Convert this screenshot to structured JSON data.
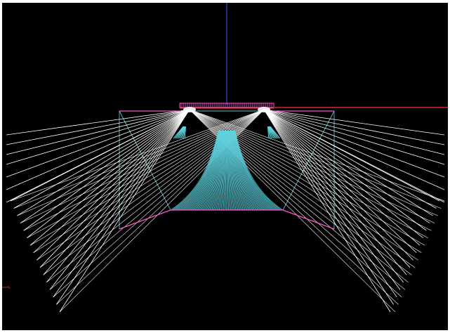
{
  "scene": {
    "background": "#000000",
    "colors": {
      "ray": "#ffffff",
      "cyan_ray": "#5fd3e0",
      "frame": "#5fb8c8",
      "magenta": "#ff55cc",
      "red": "#ff3333",
      "axis": "#3a55ff"
    }
  }
}
